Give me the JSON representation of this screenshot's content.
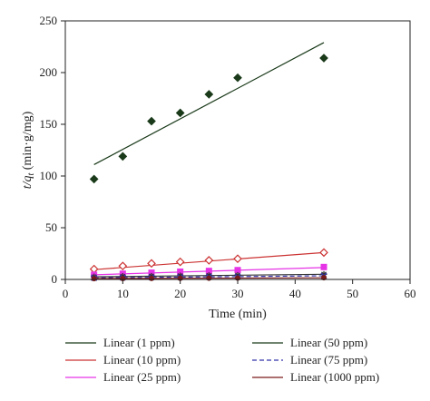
{
  "chart_data": {
    "type": "scatter",
    "xlabel": "Time (min)",
    "ylabel_main": "t/q",
    "ylabel_sub": "t",
    "ylabel_unit": " (min·g/mg)",
    "xlim": [
      0,
      60
    ],
    "ylim": [
      0,
      250
    ],
    "xticks": [
      "0",
      "10",
      "20",
      "30",
      "40",
      "50",
      "60"
    ],
    "yticks": [
      "0",
      "50",
      "100",
      "150",
      "200",
      "250"
    ],
    "x": [
      5,
      10,
      15,
      20,
      25,
      30,
      45
    ],
    "series": [
      {
        "key": "s1",
        "color": "#1a3a1a",
        "marker": "diamond-filled",
        "line_style": "solid",
        "values": [
          97,
          119,
          153,
          161,
          179,
          195,
          214
        ],
        "fit": [
          [
            5,
            111
          ],
          [
            45,
            229
          ]
        ]
      },
      {
        "key": "s2",
        "color": "#cc3333",
        "marker": "diamond-open",
        "line_style": "solid",
        "values": [
          10,
          13,
          15.5,
          17,
          18.5,
          20,
          26
        ],
        "fit": [
          [
            5,
            9.5
          ],
          [
            45,
            26
          ]
        ]
      },
      {
        "key": "s3",
        "color": "#e633e6",
        "marker": "square",
        "line_style": "solid",
        "values": [
          4.5,
          5.5,
          6.5,
          7.5,
          8.2,
          9,
          12
        ],
        "fit": [
          [
            5,
            4.5
          ],
          [
            45,
            11.5
          ]
        ]
      },
      {
        "key": "s4",
        "color": "#333333",
        "marker": "star",
        "line_style": "solid",
        "values": [
          2.5,
          3,
          3.2,
          3.5,
          3.8,
          4,
          5
        ],
        "fit": [
          [
            5,
            2.5
          ],
          [
            45,
            5
          ]
        ]
      },
      {
        "key": "s5",
        "color": "#3333aa",
        "marker": "x",
        "line_style": "dashed",
        "values": [
          1.5,
          1.8,
          2,
          2.2,
          2.4,
          2.6,
          3.5
        ],
        "fit": [
          [
            5,
            1.5
          ],
          [
            45,
            3.5
          ]
        ]
      },
      {
        "key": "s6",
        "color": "#7a1a1a",
        "marker": "circle",
        "line_style": "solid",
        "values": [
          0.8,
          0.9,
          1,
          1.1,
          1.2,
          1.3,
          1.6
        ],
        "fit": [
          [
            5,
            0.8
          ],
          [
            45,
            1.6
          ]
        ]
      }
    ],
    "legend": [
      {
        "name": "Linear (1 ppm)",
        "color": "#1a3a1a",
        "style": "solid"
      },
      {
        "name": "Linear (50 ppm)",
        "color": "#1a3a1a",
        "style": "solid"
      },
      {
        "name": "Linear (10 ppm)",
        "color": "#cc3333",
        "style": "solid"
      },
      {
        "name": "Linear (75 ppm)",
        "color": "#3333aa",
        "style": "dashed"
      },
      {
        "name": "Linear (25 ppm)",
        "color": "#e633e6",
        "style": "solid"
      },
      {
        "name": "Linear (1000 ppm)",
        "color": "#7a1a1a",
        "style": "solid"
      }
    ],
    "legend_placement": "bottom",
    "grid": false
  }
}
